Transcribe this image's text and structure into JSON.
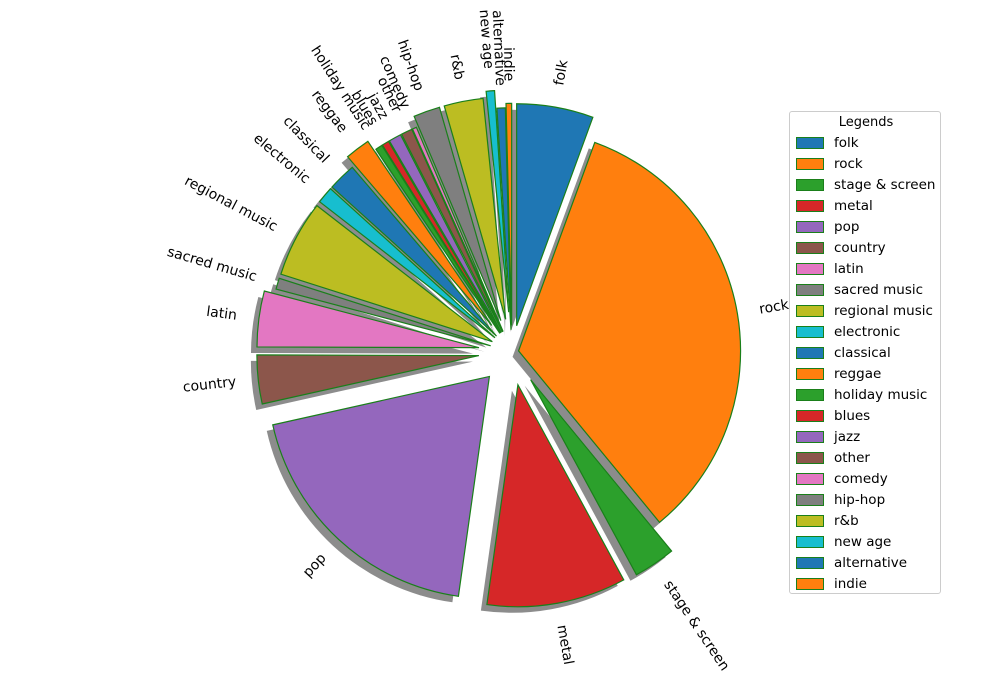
{
  "chart_data": {
    "type": "pie",
    "title": "",
    "slices": [
      {
        "label": "folk",
        "value": 5.5,
        "color": "#1f77b4"
      },
      {
        "label": "rock",
        "value": 33.0,
        "color": "#ff7f0e"
      },
      {
        "label": "stage & screen",
        "value": 3.0,
        "color": "#2ca02c"
      },
      {
        "label": "metal",
        "value": 10.0,
        "color": "#d62728"
      },
      {
        "label": "pop",
        "value": 19.0,
        "color": "#9467bd"
      },
      {
        "label": "country",
        "value": 3.5,
        "color": "#8c564b"
      },
      {
        "label": "latin",
        "value": 4.0,
        "color": "#e377c2"
      },
      {
        "label": "sacred music",
        "value": 0.8,
        "color": "#7f7f7f"
      },
      {
        "label": "regional music",
        "value": 5.5,
        "color": "#bcbd22"
      },
      {
        "label": "electronic",
        "value": 1.2,
        "color": "#17becf"
      },
      {
        "label": "classical",
        "value": 2.0,
        "color": "#1f77b4"
      },
      {
        "label": "reggae",
        "value": 1.8,
        "color": "#ff7f0e"
      },
      {
        "label": "holiday music",
        "value": 0.5,
        "color": "#2ca02c"
      },
      {
        "label": "blues",
        "value": 0.5,
        "color": "#d62728"
      },
      {
        "label": "jazz",
        "value": 0.9,
        "color": "#9467bd"
      },
      {
        "label": "other",
        "value": 0.8,
        "color": "#8c564b"
      },
      {
        "label": "comedy",
        "value": 0.3,
        "color": "#e377c2"
      },
      {
        "label": "hip-hop",
        "value": 1.9,
        "color": "#7f7f7f"
      },
      {
        "label": "r&b",
        "value": 2.8,
        "color": "#bcbd22"
      },
      {
        "label": "new age",
        "value": 0.6,
        "color": "#17becf"
      },
      {
        "label": "alternative",
        "value": 0.6,
        "color": "#1f77b4"
      },
      {
        "label": "indie",
        "value": 0.4,
        "color": "#ff7f0e"
      }
    ],
    "start_angle_deg": 90,
    "direction": "clockwise",
    "edge_color": "#1a7f1a",
    "shadow": true,
    "legend": {
      "title": "Legends",
      "placement": "right"
    }
  }
}
